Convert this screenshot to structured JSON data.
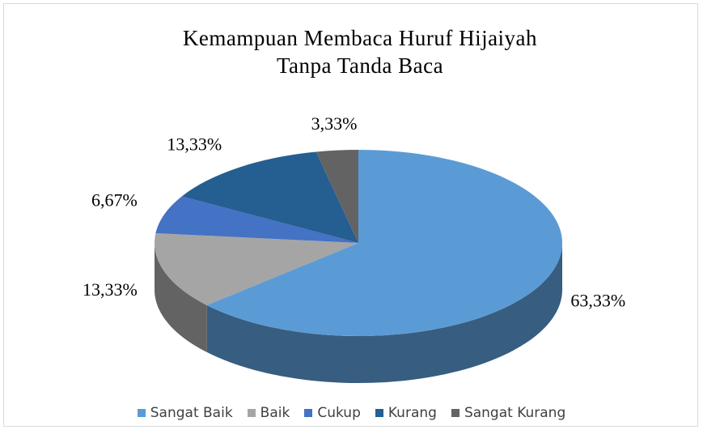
{
  "chart_data": {
    "type": "pie",
    "title": "Kemampuan Membaca Huruf Hijaiyah Tanpa Tanda Baca",
    "categories": [
      "Sangat Baik",
      "Baik",
      "Cukup",
      "Kurang",
      "Sangat Kurang"
    ],
    "values": [
      63.33,
      13.33,
      6.67,
      13.33,
      3.33
    ],
    "value_labels": [
      "63,33%",
      "13,33%",
      "6,67%",
      "13,33%",
      "3,33%"
    ],
    "colors": [
      "#5b9bd5",
      "#a5a5a5",
      "#4472c4",
      "#255e91",
      "#636363"
    ],
    "legend": "bottom"
  }
}
